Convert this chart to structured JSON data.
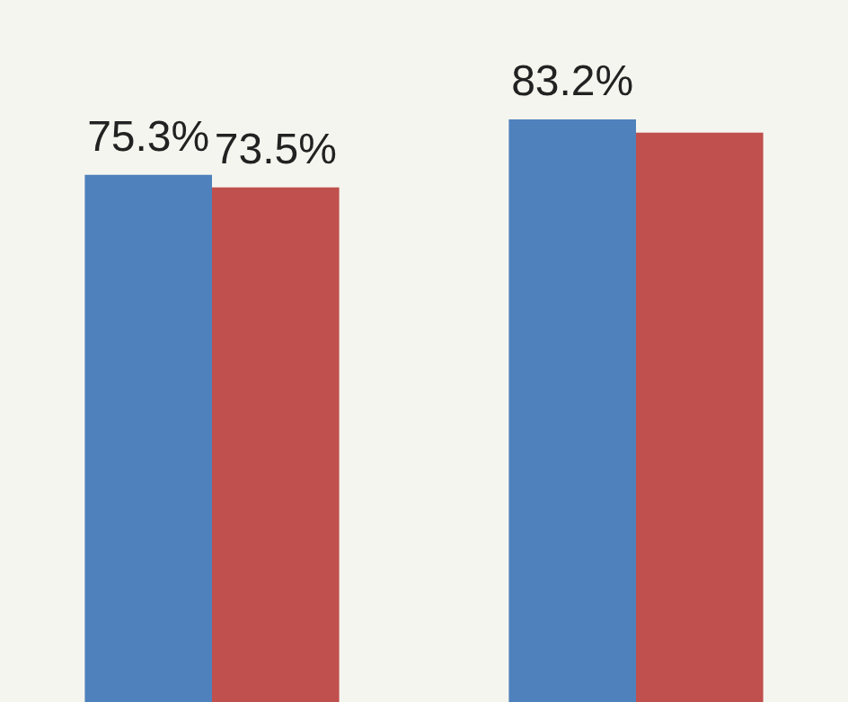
{
  "chart_data": {
    "type": "bar",
    "categories": [
      null,
      null
    ],
    "series": [
      {
        "color": "#4f81bd",
        "values": [
          75.3,
          83.2
        ],
        "value_labels": [
          "75.3%",
          "83.2%"
        ]
      },
      {
        "color": "#c0504d",
        "values": [
          73.5,
          81.3
        ],
        "value_labels": [
          "73.5%",
          null
        ]
      }
    ],
    "legend": false
  }
}
